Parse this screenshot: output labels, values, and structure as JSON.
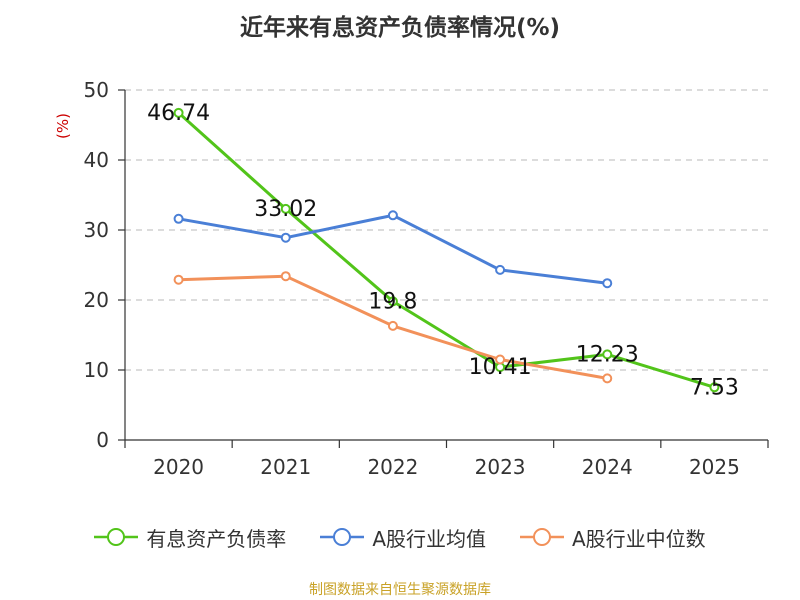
{
  "page": {
    "title": "近年来有息资产负债率情况(%)",
    "source": "制图数据来自恒生聚源数据库"
  },
  "chart_data": {
    "type": "line",
    "title": "近年来有息资产负债率情况(%)",
    "xlabel": "",
    "ylabel": "(%)",
    "categories": [
      "2020",
      "2021",
      "2022",
      "2023",
      "2024",
      "2025"
    ],
    "ylim": [
      0,
      50
    ],
    "yticks": [
      0,
      10,
      20,
      30,
      40,
      50
    ],
    "grid": true,
    "legend_position": "bottom",
    "series": [
      {
        "name": "有息资产负债率",
        "color": "#52c41a",
        "values": [
          46.74,
          33.02,
          19.8,
          10.41,
          12.23,
          7.53
        ],
        "labels": [
          "46.74",
          "33.02",
          "19.8",
          "10.41",
          "12.23",
          "7.53"
        ]
      },
      {
        "name": "A股行业均值",
        "color": "#4a7fd6",
        "values": [
          31.6,
          28.9,
          32.1,
          24.3,
          22.4,
          null
        ]
      },
      {
        "name": "A股行业中位数",
        "color": "#f2915a",
        "values": [
          22.9,
          23.4,
          16.3,
          11.5,
          8.8,
          null
        ]
      }
    ]
  }
}
